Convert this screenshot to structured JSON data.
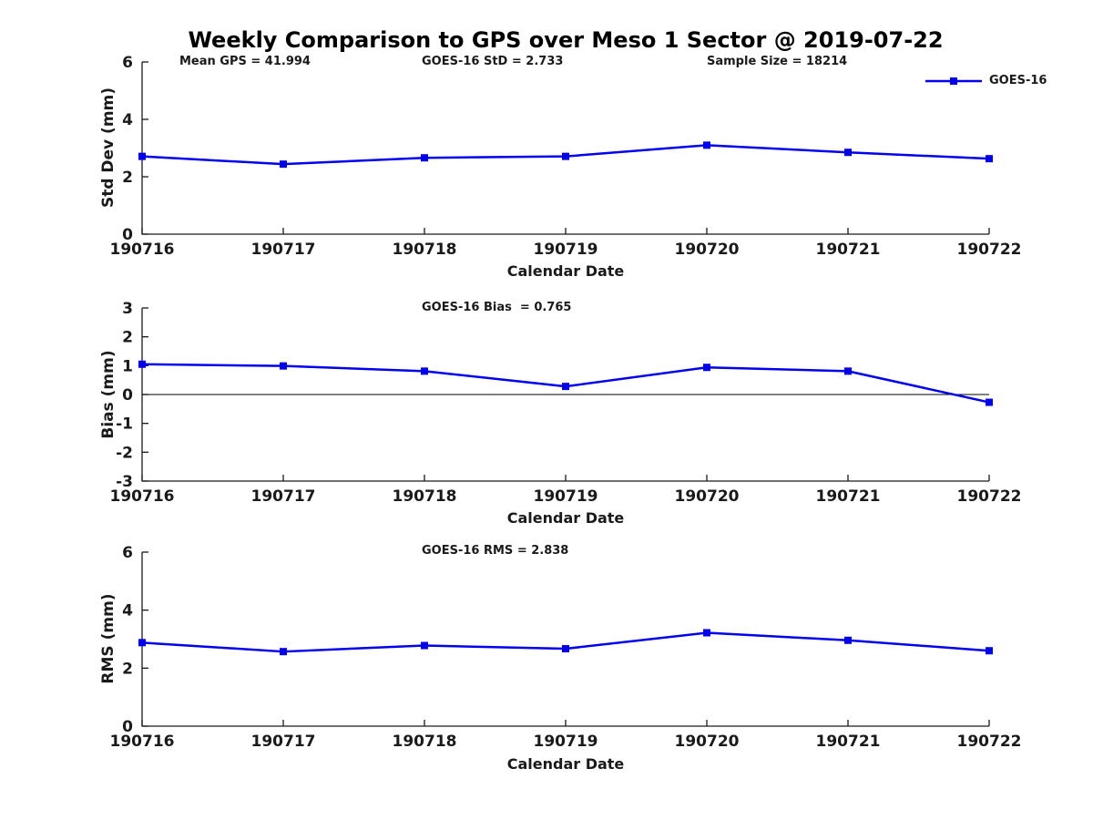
{
  "title": "Weekly Comparison to GPS over Meso 1 Sector @ 2019-07-22",
  "legend": {
    "label": "GOES-16",
    "position": "top-right"
  },
  "colors": {
    "series": "#0000ee",
    "axis": "#1a1a1a",
    "zero_line": "#000000",
    "background": "#ffffff",
    "title_text": "#000000"
  },
  "chart_data": [
    {
      "type": "line",
      "name": "std-dev",
      "ylabel": "Std Dev (mm)",
      "xlabel": "Calendar Date",
      "ylim": [
        0,
        6
      ],
      "yticks": [
        0,
        2,
        4,
        6
      ],
      "grid": false,
      "categories": [
        "190716",
        "190717",
        "190718",
        "190719",
        "190720",
        "190721",
        "190722"
      ],
      "series": [
        {
          "name": "GOES-16",
          "marker": "square",
          "values": [
            2.71,
            2.44,
            2.66,
            2.71,
            3.1,
            2.85,
            2.63
          ]
        }
      ],
      "annotations": [
        {
          "text": "Mean GPS = 41.994"
        },
        {
          "text": "GOES-16 StD = 2.733"
        },
        {
          "text": "Sample Size = 18214"
        }
      ]
    },
    {
      "type": "line",
      "name": "bias",
      "ylabel": "Bias (mm)",
      "xlabel": "Calendar Date",
      "ylim": [
        -3,
        3
      ],
      "yticks": [
        3,
        2,
        1,
        0,
        -1,
        -2,
        -3
      ],
      "zero_line": true,
      "grid": false,
      "categories": [
        "190716",
        "190717",
        "190718",
        "190719",
        "190720",
        "190721",
        "190722"
      ],
      "series": [
        {
          "name": "GOES-16",
          "marker": "square",
          "values": [
            1.05,
            0.99,
            0.81,
            0.28,
            0.94,
            0.81,
            -0.27
          ]
        }
      ],
      "annotations": [
        {
          "text": "GOES-16 Bias  = 0.765"
        }
      ]
    },
    {
      "type": "line",
      "name": "rms",
      "ylabel": "RMS (mm)",
      "xlabel": "Calendar Date",
      "ylim": [
        0,
        6
      ],
      "yticks": [
        0,
        2,
        4,
        6
      ],
      "grid": false,
      "categories": [
        "190716",
        "190717",
        "190718",
        "190719",
        "190720",
        "190721",
        "190722"
      ],
      "series": [
        {
          "name": "GOES-16",
          "marker": "square",
          "values": [
            2.88,
            2.57,
            2.78,
            2.67,
            3.22,
            2.96,
            2.6
          ]
        }
      ],
      "annotations": [
        {
          "text": "GOES-16 RMS = 2.838"
        }
      ]
    }
  ]
}
